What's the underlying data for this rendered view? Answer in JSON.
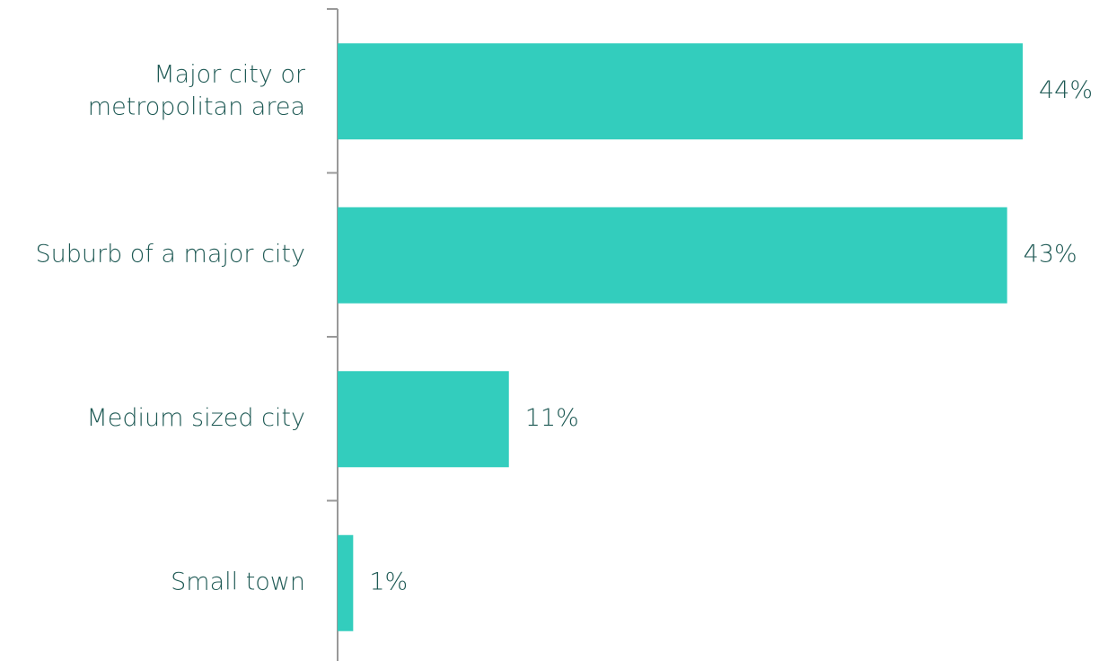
{
  "chart_data": {
    "type": "bar",
    "orientation": "horizontal",
    "categories": [
      "Major city or\nmetropolitan area",
      "Suburb of a major city",
      "Medium sized city",
      "Small town"
    ],
    "values": [
      44,
      43,
      11,
      1
    ],
    "value_labels": [
      "44%",
      "43%",
      "11%",
      "1%"
    ],
    "color": "#33cdbd"
  }
}
